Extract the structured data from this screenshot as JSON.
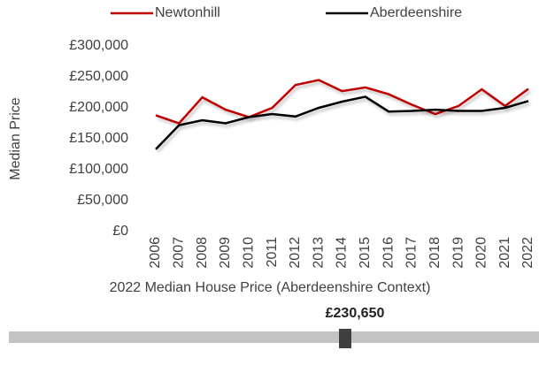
{
  "chart_data": {
    "type": "line",
    "y_label": "Median Price",
    "categories": [
      "2006",
      "2007",
      "2008",
      "2009",
      "2010",
      "2011",
      "2012",
      "2013",
      "2014",
      "2015",
      "2016",
      "2017",
      "2018",
      "2019",
      "2020",
      "2021",
      "2022"
    ],
    "series": [
      {
        "name": "Newtonhill",
        "color": "#c00000",
        "values": [
          188000,
          175000,
          217000,
          197000,
          185000,
          200000,
          237000,
          245000,
          227000,
          233000,
          222000,
          205000,
          190000,
          203000,
          230000,
          203000,
          230650
        ]
      },
      {
        "name": "Aberdeenshire",
        "color": "#000000",
        "values": [
          133000,
          172000,
          180000,
          175000,
          185000,
          190000,
          186000,
          200000,
          210000,
          218000,
          194000,
          195000,
          197000,
          195000,
          195000,
          200000,
          211000
        ]
      }
    ],
    "ylim": [
      0,
      300000
    ],
    "yticks": [
      {
        "value": 0,
        "label": "£0"
      },
      {
        "value": 50000,
        "label": "£50,000"
      },
      {
        "value": 100000,
        "label": "£100,000"
      },
      {
        "value": 150000,
        "label": "£150,000"
      },
      {
        "value": 200000,
        "label": "£200,000"
      },
      {
        "value": 250000,
        "label": "£250,000"
      },
      {
        "value": 300000,
        "label": "£300,000"
      }
    ]
  },
  "slider": {
    "title": "2022 Median House Price (Aberdeenshire Context)",
    "value_label": "£230,650"
  }
}
